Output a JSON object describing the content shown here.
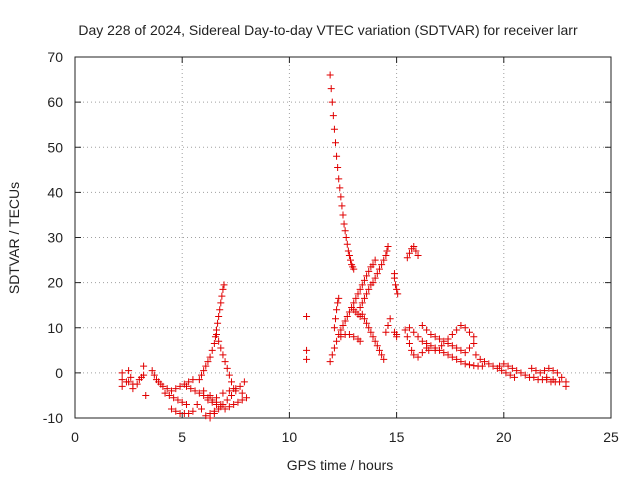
{
  "chart_data": {
    "type": "scatter",
    "title": "Day 228 of 2024, Sidereal Day-to-day VTEC variation (SDTVAR) for receiver larr",
    "xlabel": "GPS time / hours",
    "ylabel": "SDTVAR / TECUs",
    "xlim": [
      0,
      25
    ],
    "ylim": [
      -10,
      70
    ],
    "xticks": [
      0,
      5,
      10,
      15,
      20,
      25
    ],
    "yticks": [
      -10,
      0,
      10,
      20,
      30,
      40,
      50,
      60,
      70
    ],
    "grid": true,
    "marker": "+",
    "color": "#e00000",
    "series": [
      {
        "name": "SDTVAR",
        "points": [
          [
            2.2,
            0.0
          ],
          [
            2.2,
            -1.5
          ],
          [
            2.2,
            -3.0
          ],
          [
            2.4,
            -2.0
          ],
          [
            2.5,
            0.5
          ],
          [
            2.6,
            -1.0
          ],
          [
            2.7,
            -3.5
          ],
          [
            2.9,
            -2.5
          ],
          [
            3.1,
            -1.0
          ],
          [
            3.2,
            1.5
          ],
          [
            3.3,
            -5.0
          ],
          [
            2.5,
            -2.0
          ],
          [
            2.7,
            -2.5
          ],
          [
            3.0,
            -1.5
          ],
          [
            3.2,
            -0.5
          ],
          [
            3.6,
            0.5
          ],
          [
            3.7,
            -0.5
          ],
          [
            3.8,
            -1.5
          ],
          [
            3.9,
            -2.0
          ],
          [
            4.0,
            -2.5
          ],
          [
            4.1,
            -3.0
          ],
          [
            4.3,
            -3.5
          ],
          [
            4.5,
            -4.0
          ],
          [
            4.7,
            -3.5
          ],
          [
            4.9,
            -3.0
          ],
          [
            5.1,
            -2.5
          ],
          [
            5.3,
            -2.0
          ],
          [
            5.5,
            -1.5
          ],
          [
            4.2,
            -4.5
          ],
          [
            4.4,
            -5.0
          ],
          [
            4.6,
            -5.5
          ],
          [
            4.8,
            -6.0
          ],
          [
            5.0,
            -6.5
          ],
          [
            5.2,
            -7.0
          ],
          [
            4.5,
            -8.0
          ],
          [
            4.7,
            -8.5
          ],
          [
            4.9,
            -9.0
          ],
          [
            5.1,
            -9.0
          ],
          [
            5.3,
            -9.0
          ],
          [
            5.5,
            -8.5
          ],
          [
            5.2,
            -3.0
          ],
          [
            5.4,
            -3.5
          ],
          [
            5.6,
            -4.0
          ],
          [
            5.8,
            -4.5
          ],
          [
            6.0,
            -5.0
          ],
          [
            6.2,
            -5.5
          ],
          [
            6.4,
            -6.0
          ],
          [
            6.6,
            -6.5
          ],
          [
            6.8,
            -7.0
          ],
          [
            5.8,
            -1.5
          ],
          [
            5.9,
            -0.5
          ],
          [
            6.0,
            0.5
          ],
          [
            6.1,
            1.5
          ],
          [
            6.2,
            2.5
          ],
          [
            6.3,
            3.5
          ],
          [
            6.4,
            5.0
          ],
          [
            6.5,
            6.5
          ],
          [
            6.55,
            8.0
          ],
          [
            6.6,
            9.5
          ],
          [
            6.65,
            11.0
          ],
          [
            6.7,
            12.5
          ],
          [
            6.75,
            14.0
          ],
          [
            6.8,
            15.5
          ],
          [
            6.85,
            17.0
          ],
          [
            6.9,
            18.5
          ],
          [
            6.95,
            19.5
          ],
          [
            6.6,
            8.5
          ],
          [
            6.7,
            7.0
          ],
          [
            6.8,
            5.5
          ],
          [
            6.9,
            4.0
          ],
          [
            7.0,
            2.5
          ],
          [
            7.1,
            1.0
          ],
          [
            7.2,
            -0.5
          ],
          [
            7.3,
            -2.0
          ],
          [
            7.4,
            -3.5
          ],
          [
            6.2,
            -6.0
          ],
          [
            6.4,
            -6.5
          ],
          [
            6.6,
            -7.0
          ],
          [
            6.8,
            -7.5
          ],
          [
            7.0,
            -8.0
          ],
          [
            7.2,
            -7.5
          ],
          [
            7.4,
            -7.0
          ],
          [
            7.6,
            -6.5
          ],
          [
            6.3,
            -9.0
          ],
          [
            6.5,
            -8.5
          ],
          [
            6.7,
            -8.0
          ],
          [
            6.9,
            -7.0
          ],
          [
            7.1,
            -6.0
          ],
          [
            7.3,
            -5.0
          ],
          [
            7.5,
            -4.0
          ],
          [
            7.7,
            -3.0
          ],
          [
            7.9,
            -2.0
          ],
          [
            6.0,
            -4.0
          ],
          [
            6.3,
            -5.0
          ],
          [
            6.6,
            -5.5
          ],
          [
            6.9,
            -4.5
          ],
          [
            7.2,
            -4.0
          ],
          [
            7.5,
            -3.5
          ],
          [
            7.8,
            -4.5
          ],
          [
            7.8,
            -6.0
          ],
          [
            8.0,
            -5.5
          ],
          [
            5.7,
            -7.0
          ],
          [
            5.9,
            -8.0
          ],
          [
            6.1,
            -9.5
          ],
          [
            6.3,
            -10.0
          ],
          [
            6.5,
            -9.0
          ],
          [
            10.8,
            12.5
          ],
          [
            10.8,
            5.0
          ],
          [
            10.8,
            3.0
          ],
          [
            11.9,
            66.0
          ],
          [
            11.95,
            63.0
          ],
          [
            12.0,
            60.0
          ],
          [
            12.05,
            57.0
          ],
          [
            12.1,
            54.0
          ],
          [
            12.15,
            51.0
          ],
          [
            12.2,
            48.0
          ],
          [
            12.25,
            45.5
          ],
          [
            12.3,
            43.0
          ],
          [
            12.35,
            41.0
          ],
          [
            12.4,
            39.0
          ],
          [
            12.45,
            37.0
          ],
          [
            12.5,
            35.0
          ],
          [
            12.55,
            33.0
          ],
          [
            12.6,
            31.5
          ],
          [
            12.65,
            30.0
          ],
          [
            12.7,
            28.5
          ],
          [
            12.75,
            27.0
          ],
          [
            12.8,
            26.0
          ],
          [
            12.85,
            25.0
          ],
          [
            12.9,
            24.0
          ],
          [
            12.95,
            23.5
          ],
          [
            13.0,
            23.0
          ],
          [
            11.9,
            2.5
          ],
          [
            12.0,
            4.0
          ],
          [
            12.1,
            5.5
          ],
          [
            12.2,
            7.0
          ],
          [
            12.3,
            8.5
          ],
          [
            12.4,
            9.5
          ],
          [
            12.5,
            10.5
          ],
          [
            12.6,
            11.5
          ],
          [
            12.7,
            12.5
          ],
          [
            12.8,
            13.5
          ],
          [
            12.9,
            14.5
          ],
          [
            13.0,
            15.5
          ],
          [
            13.1,
            16.5
          ],
          [
            13.2,
            17.5
          ],
          [
            13.3,
            18.5
          ],
          [
            13.4,
            19.5
          ],
          [
            13.5,
            20.5
          ],
          [
            13.6,
            21.5
          ],
          [
            13.7,
            22.5
          ],
          [
            13.8,
            23.5
          ],
          [
            13.9,
            24.0
          ],
          [
            14.0,
            25.0
          ],
          [
            12.1,
            10.0
          ],
          [
            12.15,
            12.0
          ],
          [
            12.2,
            14.0
          ],
          [
            12.25,
            15.5
          ],
          [
            12.3,
            16.5
          ],
          [
            12.4,
            8.0
          ],
          [
            12.6,
            8.5
          ],
          [
            12.8,
            8.5
          ],
          [
            13.0,
            8.0
          ],
          [
            13.2,
            7.5
          ],
          [
            13.3,
            7.0
          ],
          [
            13.3,
            14.5
          ],
          [
            13.4,
            15.5
          ],
          [
            13.5,
            16.5
          ],
          [
            13.6,
            17.5
          ],
          [
            13.7,
            18.5
          ],
          [
            13.8,
            19.5
          ],
          [
            13.9,
            20.0
          ],
          [
            14.0,
            21.0
          ],
          [
            14.1,
            22.0
          ],
          [
            14.2,
            23.0
          ],
          [
            14.3,
            24.0
          ],
          [
            14.4,
            25.0
          ],
          [
            14.5,
            26.0
          ],
          [
            14.55,
            27.0
          ],
          [
            14.6,
            28.0
          ],
          [
            13.4,
            13.0
          ],
          [
            13.5,
            12.0
          ],
          [
            13.6,
            11.0
          ],
          [
            13.7,
            10.0
          ],
          [
            13.8,
            9.0
          ],
          [
            13.9,
            8.0
          ],
          [
            14.0,
            7.0
          ],
          [
            14.1,
            6.0
          ],
          [
            14.2,
            5.0
          ],
          [
            14.3,
            4.0
          ],
          [
            14.4,
            3.0
          ],
          [
            13.0,
            14.0
          ],
          [
            13.1,
            13.5
          ],
          [
            13.2,
            13.0
          ],
          [
            13.3,
            12.5
          ],
          [
            14.5,
            9.0
          ],
          [
            14.6,
            10.5
          ],
          [
            14.7,
            12.0
          ],
          [
            14.9,
            21.0
          ],
          [
            14.95,
            19.5
          ],
          [
            15.0,
            18.5
          ],
          [
            15.05,
            17.5
          ],
          [
            14.9,
            22.0
          ],
          [
            14.9,
            9.0
          ],
          [
            15.0,
            8.5
          ],
          [
            15.0,
            8.0
          ],
          [
            15.5,
            25.5
          ],
          [
            15.6,
            26.5
          ],
          [
            15.7,
            27.5
          ],
          [
            15.8,
            28.0
          ],
          [
            15.9,
            27.0
          ],
          [
            16.0,
            26.0
          ],
          [
            15.4,
            9.5
          ],
          [
            15.5,
            8.0
          ],
          [
            15.6,
            6.5
          ],
          [
            15.7,
            5.0
          ],
          [
            15.8,
            4.0
          ],
          [
            15.6,
            10.0
          ],
          [
            15.8,
            9.0
          ],
          [
            16.0,
            8.0
          ],
          [
            16.2,
            7.0
          ],
          [
            16.4,
            6.5
          ],
          [
            16.6,
            6.0
          ],
          [
            16.8,
            5.5
          ],
          [
            17.0,
            5.0
          ],
          [
            17.2,
            4.5
          ],
          [
            17.4,
            4.0
          ],
          [
            17.6,
            3.5
          ],
          [
            17.8,
            3.0
          ],
          [
            18.0,
            2.5
          ],
          [
            18.2,
            2.0
          ],
          [
            18.4,
            1.8
          ],
          [
            18.6,
            1.6
          ],
          [
            18.8,
            1.5
          ],
          [
            19.0,
            1.5
          ],
          [
            16.2,
            10.5
          ],
          [
            16.4,
            9.5
          ],
          [
            16.6,
            8.5
          ],
          [
            16.8,
            8.0
          ],
          [
            17.0,
            7.5
          ],
          [
            17.2,
            7.0
          ],
          [
            17.4,
            6.5
          ],
          [
            17.6,
            6.0
          ],
          [
            17.8,
            5.5
          ],
          [
            18.0,
            5.0
          ],
          [
            18.2,
            4.5
          ],
          [
            18.4,
            5.5
          ],
          [
            18.6,
            6.5
          ],
          [
            16.5,
            5.0
          ],
          [
            16.8,
            5.0
          ],
          [
            17.1,
            6.0
          ],
          [
            17.4,
            7.5
          ],
          [
            17.6,
            8.5
          ],
          [
            17.8,
            9.5
          ],
          [
            18.0,
            10.5
          ],
          [
            18.2,
            10.0
          ],
          [
            18.4,
            9.0
          ],
          [
            18.6,
            8.0
          ],
          [
            16.0,
            3.5
          ],
          [
            16.2,
            4.5
          ],
          [
            16.4,
            5.5
          ],
          [
            18.7,
            4.0
          ],
          [
            18.9,
            3.0
          ],
          [
            19.1,
            2.5
          ],
          [
            19.3,
            2.0
          ],
          [
            19.5,
            1.5
          ],
          [
            19.7,
            1.0
          ],
          [
            19.9,
            0.5
          ],
          [
            20.1,
            0.0
          ],
          [
            20.3,
            -0.5
          ],
          [
            20.5,
            -1.0
          ],
          [
            19.8,
            1.5
          ],
          [
            20.0,
            2.0
          ],
          [
            20.2,
            1.5
          ],
          [
            20.4,
            1.0
          ],
          [
            20.6,
            0.5
          ],
          [
            20.8,
            0.0
          ],
          [
            21.0,
            -0.5
          ],
          [
            21.2,
            -1.0
          ],
          [
            21.4,
            -1.0
          ],
          [
            21.6,
            -1.5
          ],
          [
            21.8,
            -1.5
          ],
          [
            22.0,
            -1.5
          ],
          [
            22.2,
            -2.0
          ],
          [
            22.4,
            -2.0
          ],
          [
            21.3,
            1.0
          ],
          [
            21.5,
            0.5
          ],
          [
            21.7,
            0.0
          ],
          [
            21.9,
            0.5
          ],
          [
            22.1,
            1.0
          ],
          [
            22.3,
            0.5
          ],
          [
            22.5,
            0.0
          ],
          [
            22.7,
            -1.0
          ],
          [
            22.9,
            -2.0
          ],
          [
            22.9,
            -3.0
          ],
          [
            22.0,
            -1.0
          ],
          [
            22.3,
            -1.5
          ],
          [
            22.6,
            -2.0
          ]
        ]
      }
    ]
  }
}
